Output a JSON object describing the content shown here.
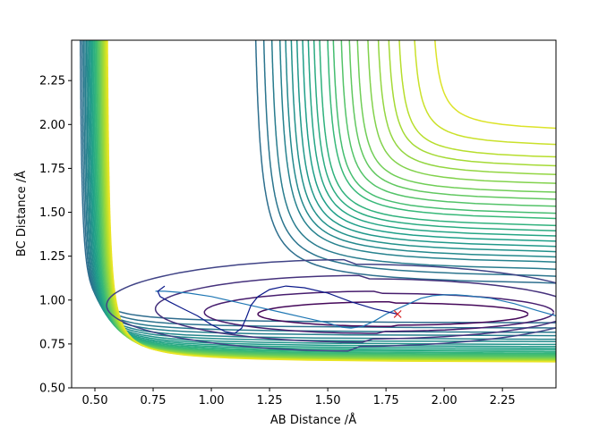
{
  "chart_data": {
    "type": "contour",
    "title": "",
    "xlabel": "AB Distance /Å",
    "ylabel": "BC Distance /Å",
    "xlim": [
      0.4,
      2.48
    ],
    "ylim": [
      0.5,
      2.48
    ],
    "xticks": [
      0.5,
      0.75,
      1.0,
      1.25,
      1.5,
      1.75,
      2.0,
      2.25
    ],
    "xtick_labels": [
      "0.50",
      "0.75",
      "1.00",
      "1.25",
      "1.50",
      "1.75",
      "2.00",
      "2.25"
    ],
    "yticks": [
      0.5,
      0.75,
      1.0,
      1.25,
      1.5,
      1.75,
      2.0,
      2.25
    ],
    "ytick_labels": [
      "0.50",
      "0.75",
      "1.00",
      "1.25",
      "1.50",
      "1.75",
      "2.00",
      "2.25"
    ],
    "colormap": "viridis",
    "grid": false,
    "contour_levels": {
      "count": 30,
      "high_side_asymptotes": [
        1.95,
        1.86,
        1.79,
        1.74,
        1.69,
        1.64,
        1.59,
        1.55,
        1.51,
        1.47,
        1.44,
        1.4,
        1.37,
        1.34,
        1.31,
        1.28,
        1.25,
        1.22,
        1.19,
        1.15,
        1.11,
        1.07
      ],
      "low_side_asymptotes": [
        0.865,
        0.835,
        0.81,
        0.79,
        0.77,
        0.755,
        0.74,
        0.728,
        0.717,
        0.707,
        0.698,
        0.69,
        0.683,
        0.677,
        0.671,
        0.666,
        0.661,
        0.657,
        0.653,
        0.649,
        0.646,
        0.643,
        0.641,
        0.639
      ]
    },
    "series": [
      {
        "color": "#1f77b4",
        "points": [
          [
            0.76,
            1.05
          ],
          [
            0.8,
            1.05
          ],
          [
            0.9,
            1.04
          ],
          [
            1.0,
            1.02
          ],
          [
            1.1,
            0.99
          ],
          [
            1.2,
            0.96
          ],
          [
            1.3,
            0.93
          ],
          [
            1.4,
            0.9
          ],
          [
            1.5,
            0.87
          ],
          [
            1.56,
            0.845
          ],
          [
            1.6,
            0.84
          ],
          [
            1.65,
            0.85
          ],
          [
            1.7,
            0.88
          ],
          [
            1.75,
            0.92
          ],
          [
            1.8,
            0.95
          ],
          [
            1.85,
            0.98
          ],
          [
            1.9,
            1.01
          ],
          [
            1.95,
            1.025
          ],
          [
            2.0,
            1.03
          ],
          [
            2.05,
            1.03
          ],
          [
            2.1,
            1.025
          ],
          [
            2.2,
            1.01
          ],
          [
            2.3,
            0.98
          ],
          [
            2.4,
            0.94
          ],
          [
            2.48,
            0.91
          ]
        ]
      },
      {
        "color": "#0c1a8a",
        "points": [
          [
            1.8,
            0.92
          ],
          [
            1.7,
            0.95
          ],
          [
            1.6,
            0.99
          ],
          [
            1.5,
            1.04
          ],
          [
            1.4,
            1.07
          ],
          [
            1.32,
            1.08
          ],
          [
            1.25,
            1.06
          ],
          [
            1.2,
            1.02
          ],
          [
            1.17,
            0.97
          ],
          [
            1.15,
            0.9
          ],
          [
            1.13,
            0.84
          ],
          [
            1.1,
            0.81
          ],
          [
            1.06,
            0.82
          ],
          [
            1.0,
            0.86
          ],
          [
            0.94,
            0.91
          ],
          [
            0.88,
            0.95
          ],
          [
            0.82,
            0.99
          ],
          [
            0.78,
            1.02
          ],
          [
            0.77,
            1.05
          ],
          [
            0.8,
            1.08
          ]
        ]
      }
    ],
    "markers": [
      {
        "label": "",
        "x": 1.8,
        "y": 0.92,
        "symbol": "x",
        "color": "#d62728"
      }
    ]
  }
}
